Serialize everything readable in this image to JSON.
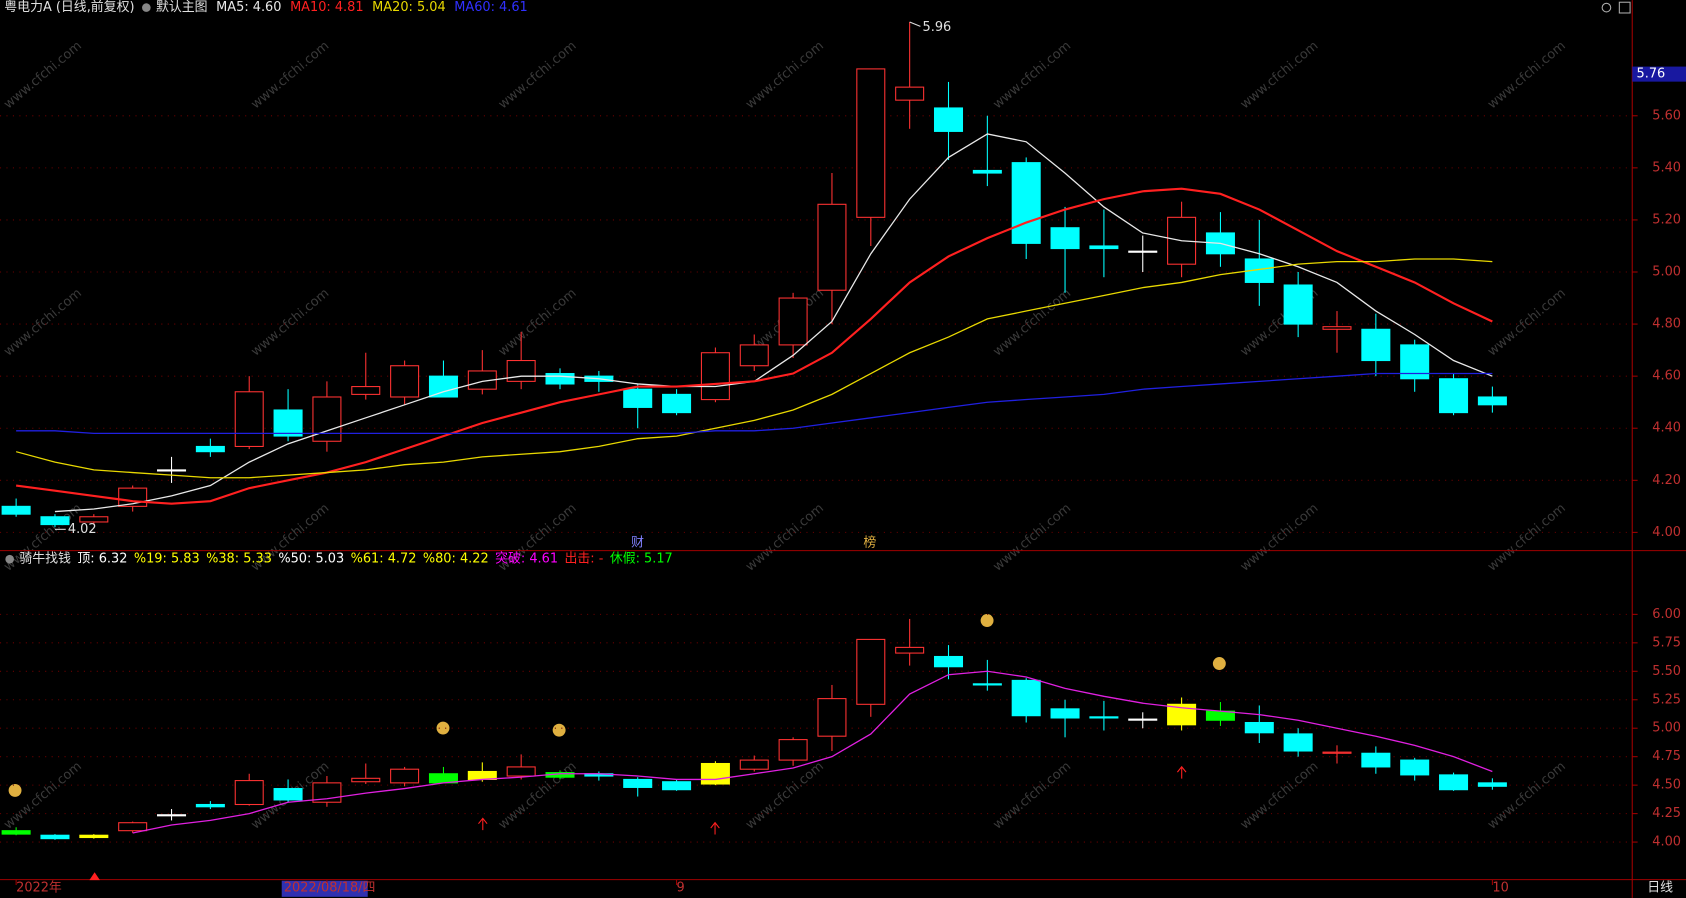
{
  "chart_data": [
    {
      "type": "candlestick",
      "title": "粤电力A (日线,前复权)",
      "subtitle": "默认主图",
      "categories": [
        "2022年",
        null,
        null,
        null,
        null,
        null,
        null,
        null,
        "2022/08/18/四",
        null,
        null,
        null,
        null,
        null,
        null,
        null,
        null,
        "9",
        null,
        null,
        null,
        null,
        null,
        null,
        null,
        null,
        null,
        null,
        null,
        null,
        null,
        null,
        null,
        null,
        null,
        null,
        null,
        null,
        "10"
      ],
      "open": [
        4.1,
        4.06,
        4.04,
        4.1,
        4.24,
        4.33,
        4.33,
        4.47,
        4.35,
        4.53,
        4.52,
        4.6,
        4.55,
        4.58,
        4.61,
        4.6,
        4.55,
        4.53,
        4.51,
        4.64,
        4.72,
        4.93,
        5.21,
        5.66,
        5.63,
        5.39,
        5.42,
        5.17,
        5.1,
        5.08,
        5.03,
        5.15,
        5.05,
        4.95,
        4.78,
        4.78,
        4.72,
        4.59,
        4.52
      ],
      "high": [
        4.13,
        4.07,
        4.07,
        4.18,
        4.29,
        4.36,
        4.6,
        4.55,
        4.58,
        4.69,
        4.66,
        4.66,
        4.7,
        4.77,
        4.63,
        4.62,
        4.57,
        4.55,
        4.71,
        4.76,
        4.92,
        5.38,
        5.78,
        5.96,
        5.73,
        5.6,
        5.44,
        5.25,
        5.24,
        5.14,
        5.27,
        5.23,
        5.2,
        5.0,
        4.85,
        4.84,
        4.74,
        4.61,
        4.56
      ],
      "low": [
        4.06,
        4.02,
        4.03,
        4.08,
        4.19,
        4.29,
        4.32,
        4.35,
        4.31,
        4.51,
        4.49,
        4.52,
        4.53,
        4.55,
        4.55,
        4.54,
        4.4,
        4.45,
        4.5,
        4.62,
        4.67,
        4.8,
        5.1,
        5.55,
        5.43,
        5.33,
        5.05,
        4.92,
        4.98,
        5.0,
        4.98,
        5.02,
        4.87,
        4.75,
        4.69,
        4.6,
        4.54,
        4.45,
        4.46
      ],
      "close": [
        4.07,
        4.03,
        4.06,
        4.17,
        4.24,
        4.31,
        4.54,
        4.37,
        4.52,
        4.56,
        4.64,
        4.52,
        4.62,
        4.66,
        4.57,
        4.58,
        4.48,
        4.46,
        4.69,
        4.72,
        4.9,
        5.26,
        5.78,
        5.71,
        5.54,
        5.38,
        5.11,
        5.09,
        5.09,
        5.08,
        5.21,
        5.07,
        4.96,
        4.8,
        4.79,
        4.66,
        4.59,
        4.46,
        4.49
      ],
      "up_color": "#ff3232",
      "down_color": "#00ffff",
      "doji_color": "#ffffff",
      "series": [
        {
          "name": "MA5: 4.60",
          "color": "#e8e8e8",
          "values": [
            null,
            4.08,
            4.09,
            4.11,
            4.14,
            4.18,
            4.27,
            4.34,
            4.39,
            4.44,
            4.49,
            4.54,
            4.58,
            4.6,
            4.6,
            4.59,
            4.57,
            4.56,
            4.56,
            4.58,
            4.68,
            4.81,
            5.07,
            5.28,
            5.44,
            5.53,
            5.5,
            5.38,
            5.25,
            5.15,
            5.12,
            5.11,
            5.07,
            5.02,
            4.96,
            4.85,
            4.76,
            4.66,
            4.6
          ]
        },
        {
          "name": "MA10: 4.81",
          "color": "#ff2020",
          "values": [
            4.18,
            4.16,
            4.14,
            4.12,
            4.11,
            4.12,
            4.17,
            4.2,
            4.23,
            4.27,
            4.32,
            4.37,
            4.42,
            4.46,
            4.5,
            4.53,
            4.56,
            4.56,
            4.57,
            4.58,
            4.61,
            4.69,
            4.82,
            4.96,
            5.06,
            5.13,
            5.19,
            5.24,
            5.28,
            5.31,
            5.32,
            5.3,
            5.24,
            5.16,
            5.08,
            5.02,
            4.96,
            4.88,
            4.81
          ]
        },
        {
          "name": "MA20: 5.04",
          "color": "#e8d800",
          "values": [
            4.31,
            4.27,
            4.24,
            4.23,
            4.22,
            4.21,
            4.21,
            4.22,
            4.23,
            4.24,
            4.26,
            4.27,
            4.29,
            4.3,
            4.31,
            4.33,
            4.36,
            4.37,
            4.4,
            4.43,
            4.47,
            4.53,
            4.61,
            4.69,
            4.75,
            4.82,
            4.85,
            4.88,
            4.91,
            4.94,
            4.96,
            4.99,
            5.01,
            5.03,
            5.04,
            5.04,
            5.05,
            5.05,
            5.04
          ]
        },
        {
          "name": "MA60: 4.61",
          "color": "#2020e0",
          "values": [
            4.39,
            4.39,
            4.38,
            4.38,
            4.38,
            4.38,
            4.38,
            4.38,
            4.38,
            4.38,
            4.38,
            4.38,
            4.38,
            4.38,
            4.38,
            4.38,
            4.38,
            4.38,
            4.39,
            4.39,
            4.4,
            4.42,
            4.44,
            4.46,
            4.48,
            4.5,
            4.51,
            4.52,
            4.53,
            4.55,
            4.56,
            4.57,
            4.58,
            4.59,
            4.6,
            4.61,
            4.61,
            4.61,
            4.61
          ]
        }
      ],
      "ylim": [
        3.93,
        5.97
      ],
      "yticks": [
        {
          "value": 4,
          "label": "4.00"
        },
        {
          "value": 4.2,
          "label": "4.20"
        },
        {
          "value": 4.4,
          "label": "4.40"
        },
        {
          "value": 4.6,
          "label": "4.60"
        },
        {
          "value": 4.8,
          "label": "4.80"
        },
        {
          "value": 5,
          "label": "5.00"
        },
        {
          "value": 5.2,
          "label": "5.20"
        },
        {
          "value": 5.4,
          "label": "5.40"
        },
        {
          "value": 5.6,
          "label": "5.60"
        }
      ],
      "grid": true,
      "price_tag": 5.76,
      "annotations": {
        "max": "5.96",
        "min": "4.02"
      },
      "events": [
        "财",
        "榜"
      ],
      "period": "日线"
    },
    {
      "type": "candlestick",
      "title": "骑牛找钱",
      "legend": [
        {
          "text": "顶: 6.32",
          "color": "#ffffff"
        },
        {
          "text": "%19: 5.83",
          "color": "#ffff00"
        },
        {
          "text": "%38: 5.33",
          "color": "#ffff00"
        },
        {
          "text": "%50: 5.03",
          "color": "#ffffff"
        },
        {
          "text": "%61: 4.72",
          "color": "#ffff00"
        },
        {
          "text": "%80: 4.22",
          "color": "#ffff00"
        },
        {
          "text": "突破: 4.61",
          "color": "#ff00ff"
        },
        {
          "text": "出击: -",
          "color": "#ff2020"
        },
        {
          "text": "休假: 5.17",
          "color": "#00ff00"
        }
      ],
      "candle_colors": [
        "#00ff00",
        null,
        "#ffff00",
        null,
        null,
        null,
        null,
        null,
        null,
        null,
        null,
        "#00ff00",
        "#ffff00",
        null,
        "#00ff00",
        null,
        null,
        null,
        "#ffff00",
        null,
        null,
        null,
        null,
        null,
        null,
        null,
        null,
        null,
        null,
        null,
        "#ffff00",
        "#00ff00",
        null,
        null,
        null,
        null,
        null,
        null,
        null
      ],
      "series": [
        {
          "color": "#e020e0",
          "values": [
            null,
            null,
            null,
            4.08,
            4.15,
            4.19,
            4.25,
            4.35,
            4.38,
            4.43,
            4.47,
            4.52,
            4.55,
            4.57,
            4.6,
            4.6,
            4.58,
            4.55,
            4.55,
            4.6,
            4.65,
            4.75,
            4.95,
            5.3,
            5.47,
            5.5,
            5.45,
            5.35,
            5.28,
            5.22,
            5.18,
            5.15,
            5.12,
            5.07,
            5.0,
            4.93,
            4.85,
            4.75,
            4.62
          ]
        }
      ],
      "ylim": [
        3.67,
        6.56
      ],
      "yticks": [
        {
          "value": 4,
          "label": "4.00"
        },
        4.25,
        {
          "value": 4.5,
          "label": "4.50"
        },
        4.75,
        {
          "value": 5,
          "label": "5.00"
        },
        5.25,
        {
          "value": 5.5,
          "label": "5.50"
        },
        5.75,
        {
          "value": 6,
          "label": "6.00"
        }
      ],
      "grid": true
    }
  ],
  "watermark": "www.cfchi.com"
}
